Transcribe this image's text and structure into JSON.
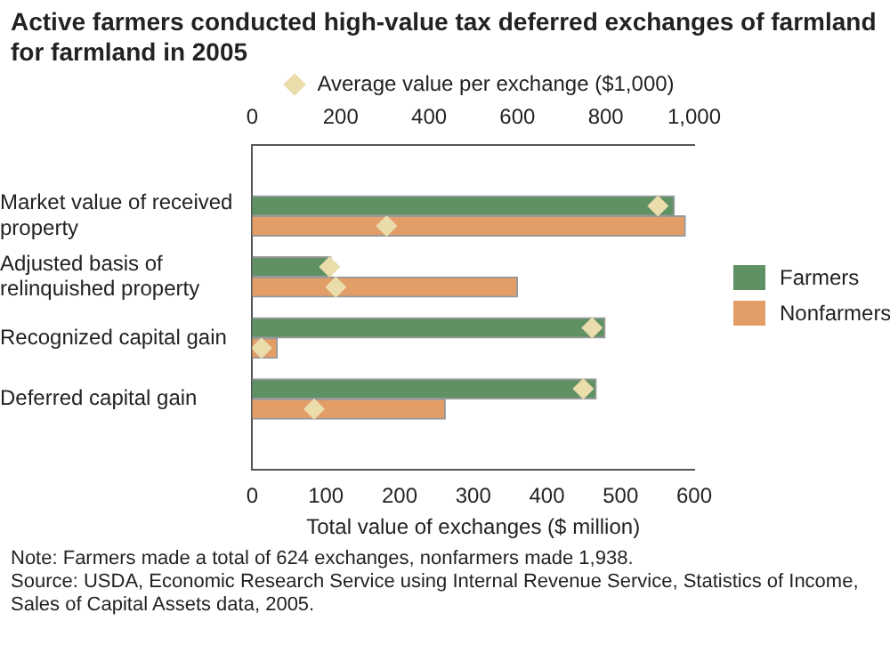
{
  "chart_data": {
    "type": "bar",
    "orientation": "horizontal",
    "title": "Active farmers conducted high-value tax deferred exchanges of farmland for farmland in 2005",
    "categories": [
      "Market value of received property",
      "Adjusted basis of relinquished property",
      "Recognized capital gain",
      "Deferred capital gain"
    ],
    "series": [
      {
        "name": "Farmers",
        "color": "#5f9164",
        "values": [
          573,
          107,
          479,
          467
        ]
      },
      {
        "name": "Nonfarmers",
        "color": "#e39e68",
        "values": [
          588,
          360,
          34,
          262
        ]
      },
      {
        "type": "scatter",
        "axis": "x2",
        "name": "Average value per exchange ($1,000)",
        "color": "#eadcab",
        "values": [
          918,
          175,
          769,
          749
        ]
      },
      {
        "type": "scatter",
        "axis": "x2",
        "color": "#eadcab",
        "values": [
          304,
          189,
          21,
          140
        ]
      }
    ],
    "xlabel": "Total value of exchanges ($ million)",
    "xlim": [
      0,
      600
    ],
    "xticks": [
      0,
      100,
      200,
      300,
      400,
      500,
      600
    ],
    "x2lim": [
      0,
      1000
    ],
    "x2ticks": [
      0,
      200,
      400,
      600,
      800,
      {
        "value": 1000,
        "label": "1,000"
      }
    ],
    "marker": "diamond",
    "grid": false,
    "legend": "right",
    "annotations": [
      "Note: Farmers made a total of 624 exchanges, nonfarmers made 1,938.",
      "Source: USDA, Economic Research Service using Internal Revenue Service, Statistics of Income, Sales of Capital Assets data, 2005."
    ]
  }
}
